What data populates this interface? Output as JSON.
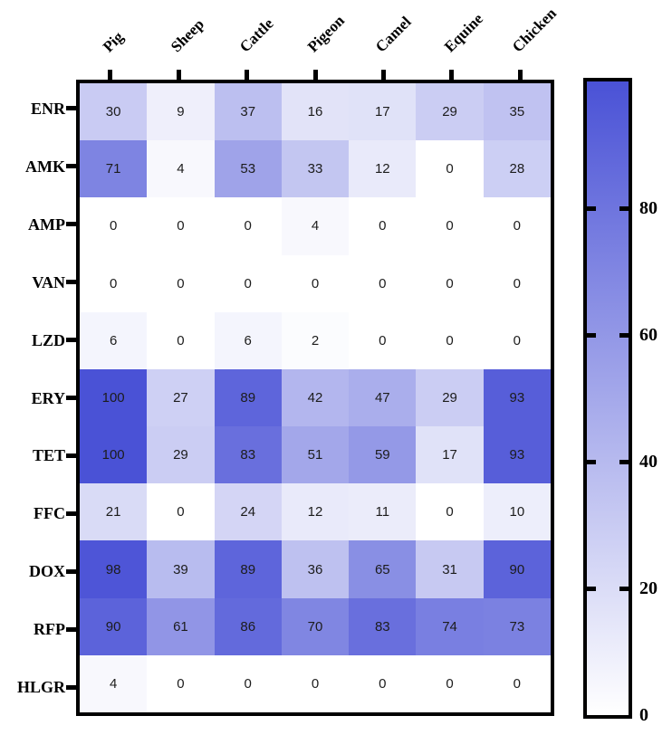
{
  "figure": {
    "background": "#ffffff"
  },
  "chart_data": {
    "type": "heatmap",
    "title": "",
    "columns": [
      "Pig",
      "Sheep",
      "Cattle",
      "Pigeon",
      "Camel",
      "Equine",
      "Chicken"
    ],
    "rows": [
      "ENR",
      "AMK",
      "AMP",
      "VAN",
      "LZD",
      "ERY",
      "TET",
      "FFC",
      "DOX",
      "RFP",
      "HLGR"
    ],
    "values": [
      [
        30,
        9,
        37,
        16,
        17,
        29,
        35
      ],
      [
        71,
        4,
        53,
        33,
        12,
        0,
        28
      ],
      [
        0,
        0,
        0,
        4,
        0,
        0,
        0
      ],
      [
        0,
        0,
        0,
        0,
        0,
        0,
        0
      ],
      [
        6,
        0,
        6,
        2,
        0,
        0,
        0
      ],
      [
        100,
        27,
        89,
        42,
        47,
        29,
        93
      ],
      [
        100,
        29,
        83,
        51,
        59,
        17,
        93
      ],
      [
        21,
        0,
        24,
        12,
        11,
        0,
        10
      ],
      [
        98,
        39,
        89,
        36,
        65,
        31,
        90
      ],
      [
        90,
        61,
        86,
        70,
        83,
        74,
        73
      ],
      [
        4,
        0,
        0,
        0,
        0,
        0,
        0
      ]
    ],
    "value_range": [
      0,
      100
    ],
    "grid": false,
    "legend_position": "right",
    "colorbar": {
      "min": 0,
      "max": 100,
      "tick_values": [
        80,
        60,
        40,
        20,
        0
      ],
      "tick_labels": [
        "80",
        "60",
        "40",
        "20",
        "0"
      ],
      "low_color": "#ffffff",
      "high_color": "#4a52d6"
    },
    "cell_text_color": "#1c1c1c",
    "frame_color": "#000000"
  }
}
